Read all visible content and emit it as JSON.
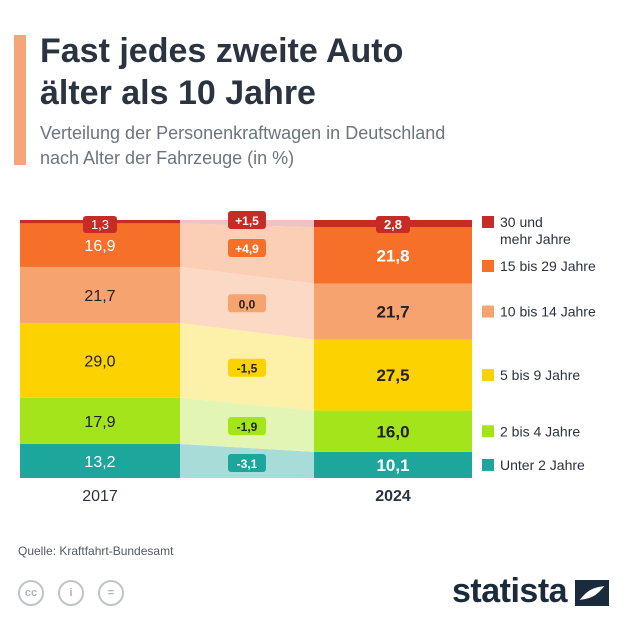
{
  "header": {
    "title_line1": "Fast jedes zweite Auto",
    "title_line2": "älter als 10 Jahre",
    "subtitle_line1": "Verteilung der Personenkraftwagen in Deutschland",
    "subtitle_line2": "nach Alter der Fahrzeuge (in %)"
  },
  "chart_data": {
    "type": "stacked-bar",
    "title": "Fast jedes zweite Auto älter als 10 Jahre",
    "subtitle": "Verteilung der Personenkraftwagen in Deutschland nach Alter der Fahrzeuge (in %)",
    "categories": [
      "2017",
      "2024"
    ],
    "series": [
      {
        "name": "Unter 2 Jahre",
        "values": [
          13.2,
          10.1
        ],
        "labels": [
          "13,2",
          "10,1"
        ],
        "change": "-3,1",
        "color": "#1da69b",
        "band_color": "#a8dcd8",
        "change_text_color": "#ffffff"
      },
      {
        "name": "2 bis 4 Jahre",
        "values": [
          17.9,
          16.0
        ],
        "labels": [
          "17,9",
          "16,0"
        ],
        "change": "-1,9",
        "color": "#a3e41b",
        "band_color": "#e3f5b5",
        "change_text_color": "#222222"
      },
      {
        "name": "5 bis 9 Jahre",
        "values": [
          29.0,
          27.5
        ],
        "labels": [
          "29,0",
          "27,5"
        ],
        "change": "-1,5",
        "color": "#fcd200",
        "band_color": "#fdf0a8",
        "change_text_color": "#222222"
      },
      {
        "name": "10 bis 14 Jahre",
        "values": [
          21.7,
          21.7
        ],
        "labels": [
          "21,7",
          "21,7"
        ],
        "change": "0,0",
        "color": "#f7a370",
        "band_color": "#fbd9c4",
        "change_text_color": "#222222"
      },
      {
        "name": "15 bis 29 Jahre",
        "values": [
          16.9,
          21.8
        ],
        "labels": [
          "16,9",
          "21,8"
        ],
        "change": "+4,9",
        "color": "#f7702a",
        "band_color": "#fbcfb6",
        "change_text_color": "#ffffff"
      },
      {
        "name": "30 und mehr Jahre",
        "legend_lines": [
          "30 und",
          "mehr Jahre"
        ],
        "values": [
          1.3,
          2.8
        ],
        "labels": [
          "1,3",
          "2,8"
        ],
        "change": "+1,5",
        "color": "#c72b25",
        "band_color": "#eec4c2",
        "change_text_color": "#ffffff"
      }
    ],
    "unit": "%"
  },
  "footer": {
    "source": "Quelle: Kraftfahrt-Bundesamt",
    "brand": "statista"
  }
}
